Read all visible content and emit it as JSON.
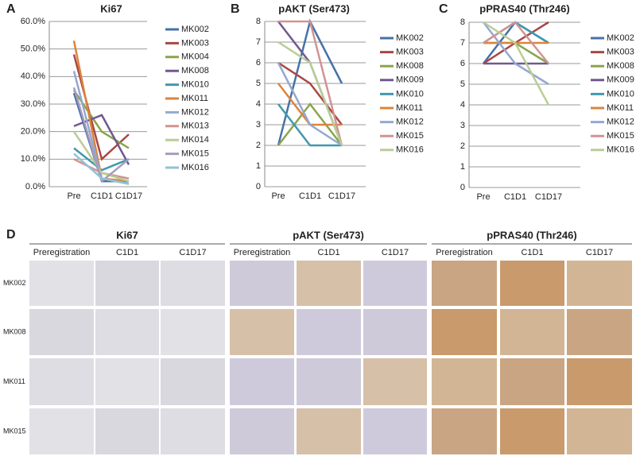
{
  "chart_data": [
    {
      "type": "line",
      "panel_label": "A",
      "title": "Ki67",
      "categories": [
        "Pre",
        "C1D1",
        "C1D17"
      ],
      "ylim": [
        0,
        60
      ],
      "yticks": [
        {
          "value": 0,
          "label": "0.0%"
        },
        {
          "value": 10,
          "label": "10.0%"
        },
        {
          "value": 20,
          "label": "20.0%"
        },
        {
          "value": 30,
          "label": "30.0%"
        },
        {
          "value": 40,
          "label": "40.0%"
        },
        {
          "value": 50,
          "label": "50.0%"
        },
        {
          "value": 60,
          "label": "60.0%"
        }
      ],
      "grid": true,
      "legend": "right",
      "series": [
        {
          "name": "MK002",
          "color": "#4572a7",
          "values": [
            34,
            2,
            2
          ]
        },
        {
          "name": "MK003",
          "color": "#aa4643",
          "values": [
            48,
            10,
            19
          ]
        },
        {
          "name": "MK004",
          "color": "#89a54e",
          "values": [
            35,
            20,
            14
          ]
        },
        {
          "name": "MK008",
          "color": "#71588f",
          "values": [
            22,
            26,
            8
          ]
        },
        {
          "name": "MK010",
          "color": "#4198af",
          "values": [
            14,
            6,
            10
          ]
        },
        {
          "name": "MK011",
          "color": "#db843d",
          "values": [
            53,
            3,
            2
          ]
        },
        {
          "name": "MK012",
          "color": "#93a9cf",
          "values": [
            42,
            3,
            1
          ]
        },
        {
          "name": "MK013",
          "color": "#d19392",
          "values": [
            10,
            5,
            3
          ]
        },
        {
          "name": "MK014",
          "color": "#b9cd96",
          "values": [
            20,
            5,
            2
          ]
        },
        {
          "name": "MK015",
          "color": "#a99bbd",
          "values": [
            36,
            2,
            10
          ]
        },
        {
          "name": "MK016",
          "color": "#91c3d5",
          "values": [
            12,
            3,
            1
          ]
        }
      ]
    },
    {
      "type": "line",
      "panel_label": "B",
      "title": "pAKT (Ser473)",
      "categories": [
        "Pre",
        "C1D1",
        "C1D17"
      ],
      "ylim": [
        0,
        8
      ],
      "yticks": [
        0,
        1,
        2,
        3,
        4,
        5,
        6,
        7,
        8
      ],
      "grid": true,
      "legend": "right",
      "series": [
        {
          "name": "MK002",
          "color": "#4572a7",
          "values": [
            2,
            8,
            5
          ]
        },
        {
          "name": "MK003",
          "color": "#aa4643",
          "values": [
            6,
            5,
            3
          ]
        },
        {
          "name": "MK008",
          "color": "#89a54e",
          "values": [
            2,
            4,
            2
          ]
        },
        {
          "name": "MK009",
          "color": "#71588f",
          "values": [
            8,
            6,
            2
          ]
        },
        {
          "name": "MK010",
          "color": "#4198af",
          "values": [
            4,
            2,
            2
          ]
        },
        {
          "name": "MK011",
          "color": "#db843d",
          "values": [
            5,
            3,
            3
          ]
        },
        {
          "name": "MK012",
          "color": "#93a9cf",
          "values": [
            6,
            3,
            2
          ]
        },
        {
          "name": "MK015",
          "color": "#d19392",
          "values": [
            8,
            8,
            2
          ]
        },
        {
          "name": "MK016",
          "color": "#b9cd96",
          "values": [
            7,
            6,
            2
          ]
        }
      ]
    },
    {
      "type": "line",
      "panel_label": "C",
      "title": "pPRAS40 (Thr246)",
      "categories": [
        "Pre",
        "C1D1",
        "C1D17"
      ],
      "ylim": [
        0,
        8
      ],
      "yticks": [
        0,
        1,
        2,
        3,
        4,
        5,
        6,
        7,
        8
      ],
      "grid": true,
      "legend": "right",
      "series": [
        {
          "name": "MK002",
          "color": "#4572a7",
          "values": [
            6,
            8,
            7
          ]
        },
        {
          "name": "MK003",
          "color": "#aa4643",
          "values": [
            6,
            7,
            8
          ]
        },
        {
          "name": "MK008",
          "color": "#89a54e",
          "values": [
            7,
            7,
            6
          ]
        },
        {
          "name": "MK009",
          "color": "#71588f",
          "values": [
            6,
            6,
            6
          ]
        },
        {
          "name": "MK010",
          "color": "#4198af",
          "values": [
            7,
            8,
            7
          ]
        },
        {
          "name": "MK011",
          "color": "#db843d",
          "values": [
            7,
            7,
            7
          ]
        },
        {
          "name": "MK012",
          "color": "#93a9cf",
          "values": [
            8,
            6,
            5
          ]
        },
        {
          "name": "MK015",
          "color": "#d19392",
          "values": [
            7,
            8,
            6
          ]
        },
        {
          "name": "MK016",
          "color": "#b9cd96",
          "values": [
            8,
            7,
            4
          ]
        }
      ]
    }
  ],
  "panel_d": {
    "panel_label": "D",
    "groups": [
      {
        "title": "Ki67",
        "columns": [
          "Preregistration",
          "C1D1",
          "C1D17"
        ]
      },
      {
        "title": "pAKT (Ser473)",
        "columns": [
          "Preregistration",
          "C1D1",
          "C1D17"
        ]
      },
      {
        "title": "pPRAS40 (Thr246)",
        "columns": [
          "Preregistration",
          "C1D1",
          "C1D17"
        ]
      }
    ],
    "rows": [
      "MK002",
      "MK008",
      "MK011",
      "MK015"
    ]
  }
}
